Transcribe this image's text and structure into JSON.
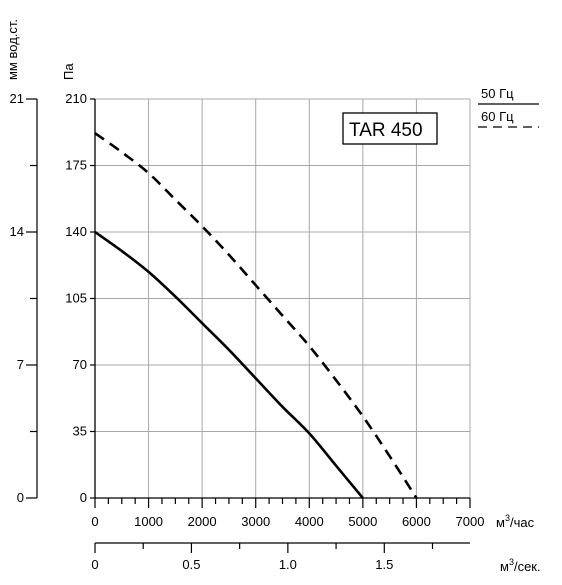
{
  "chart_data": {
    "type": "line",
    "model": "TAR 450",
    "x_unit": "м³/час",
    "x_unit_base": "м",
    "x_unit_sup": "3",
    "x_unit_suffix": "/час",
    "x2_unit_base": "м",
    "x2_unit_sup": "3",
    "x2_unit_suffix": "/сек.",
    "y_unit": "Па",
    "y2_unit": "мм вод.ст.",
    "xlim": [
      0,
      7000
    ],
    "ylim": [
      0,
      210
    ],
    "x_ticks": [
      0,
      1000,
      2000,
      3000,
      4000,
      5000,
      6000,
      7000
    ],
    "x_tick_labels": [
      "0",
      "1000",
      "2000",
      "3000",
      "4000",
      "5000",
      "6000",
      "7000"
    ],
    "y_ticks": [
      0,
      35,
      70,
      105,
      140,
      175,
      210
    ],
    "y_tick_labels": [
      "0",
      "35",
      "70",
      "105",
      "140",
      "175",
      "210"
    ],
    "y2_ticks": [
      0,
      7,
      14,
      21
    ],
    "y2_tick_labels": [
      "0",
      "7",
      "14",
      "21"
    ],
    "y2_minor_ticks": [
      3.5,
      10.5,
      17.5
    ],
    "x2_ticks": [
      0,
      0.5,
      1.0,
      1.5
    ],
    "x2_tick_labels": [
      "0",
      "0.5",
      "1.0",
      "1.5"
    ],
    "x2_minor_ticks": [
      0.25,
      0.75,
      1.25,
      1.75
    ],
    "grid": true,
    "series": [
      {
        "name": "50 Гц",
        "style": "solid",
        "color": "#000000",
        "x": [
          0,
          500,
          1000,
          1500,
          2000,
          2500,
          3000,
          3500,
          4000,
          4500,
          5000
        ],
        "y": [
          140,
          130,
          119,
          106,
          92,
          78,
          63,
          48,
          34,
          17,
          0
        ]
      },
      {
        "name": "60 Гц",
        "style": "dashed",
        "color": "#000000",
        "x": [
          0,
          500,
          1000,
          1500,
          2000,
          2500,
          3000,
          3500,
          4000,
          4500,
          5000,
          5500,
          6000
        ],
        "y": [
          192,
          182,
          171,
          157,
          143,
          128,
          112,
          96,
          80,
          62,
          43,
          22,
          0
        ]
      }
    ],
    "legend_position": "top-right"
  }
}
